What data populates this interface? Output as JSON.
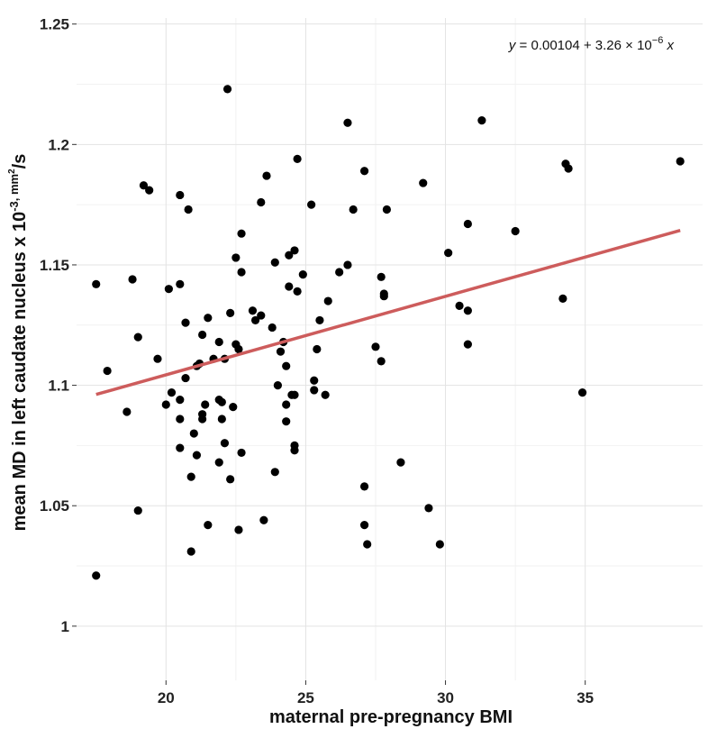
{
  "chart_data": {
    "type": "scatter",
    "xlabel": "maternal pre-pregnancy BMI",
    "ylabel_main": "mean MD in left caudate nucleus x 10",
    "ylabel_exp": "-3, mm",
    "ylabel_exp2": "2",
    "ylabel_tail": "/s",
    "equation": {
      "lhs": "y",
      "rhs": " = 0.00104 + 3.26 × 10",
      "exp": "−6",
      "var": " x"
    },
    "xlim": [
      16.8,
      39.2
    ],
    "ylim": [
      0.9775,
      1.2525
    ],
    "x_ticks": [
      20,
      25,
      30,
      35
    ],
    "x_tick_labels": [
      "20",
      "25",
      "30",
      "35"
    ],
    "y_ticks": [
      1.0,
      1.05,
      1.1,
      1.15,
      1.2,
      1.25
    ],
    "y_tick_labels": [
      "1",
      "1.05",
      "1.1",
      "1.15",
      "1.2",
      "1.25"
    ],
    "grid": true,
    "point_color": "#000000",
    "fit_line": {
      "color": "#cd5c5c",
      "x": [
        17.5,
        38.4
      ],
      "y": [
        1.0962,
        1.1643
      ]
    },
    "points": [
      {
        "x": 17.5,
        "y": 1.142
      },
      {
        "x": 17.5,
        "y": 1.021
      },
      {
        "x": 17.9,
        "y": 1.106
      },
      {
        "x": 18.6,
        "y": 1.089
      },
      {
        "x": 18.8,
        "y": 1.144
      },
      {
        "x": 19.0,
        "y": 1.12
      },
      {
        "x": 19.0,
        "y": 1.048
      },
      {
        "x": 19.2,
        "y": 1.183
      },
      {
        "x": 19.4,
        "y": 1.181
      },
      {
        "x": 19.7,
        "y": 1.111
      },
      {
        "x": 20.0,
        "y": 1.092
      },
      {
        "x": 20.1,
        "y": 1.14
      },
      {
        "x": 20.2,
        "y": 1.097
      },
      {
        "x": 20.5,
        "y": 1.179
      },
      {
        "x": 20.5,
        "y": 1.142
      },
      {
        "x": 20.5,
        "y": 1.094
      },
      {
        "x": 20.5,
        "y": 1.086
      },
      {
        "x": 20.5,
        "y": 1.074
      },
      {
        "x": 20.7,
        "y": 1.126
      },
      {
        "x": 20.7,
        "y": 1.103
      },
      {
        "x": 20.8,
        "y": 1.173
      },
      {
        "x": 20.9,
        "y": 1.062
      },
      {
        "x": 20.9,
        "y": 1.031
      },
      {
        "x": 21.0,
        "y": 1.08
      },
      {
        "x": 21.1,
        "y": 1.108
      },
      {
        "x": 21.1,
        "y": 1.071
      },
      {
        "x": 21.2,
        "y": 1.109
      },
      {
        "x": 21.3,
        "y": 1.121
      },
      {
        "x": 21.3,
        "y": 1.088
      },
      {
        "x": 21.3,
        "y": 1.086
      },
      {
        "x": 21.4,
        "y": 1.092
      },
      {
        "x": 21.5,
        "y": 1.128
      },
      {
        "x": 21.5,
        "y": 1.042
      },
      {
        "x": 21.7,
        "y": 1.111
      },
      {
        "x": 21.9,
        "y": 1.118
      },
      {
        "x": 21.9,
        "y": 1.094
      },
      {
        "x": 21.9,
        "y": 1.068
      },
      {
        "x": 22.0,
        "y": 1.093
      },
      {
        "x": 22.0,
        "y": 1.086
      },
      {
        "x": 22.1,
        "y": 1.111
      },
      {
        "x": 22.1,
        "y": 1.076
      },
      {
        "x": 22.2,
        "y": 1.223
      },
      {
        "x": 22.3,
        "y": 1.13
      },
      {
        "x": 22.3,
        "y": 1.061
      },
      {
        "x": 22.4,
        "y": 1.091
      },
      {
        "x": 22.5,
        "y": 1.153
      },
      {
        "x": 22.5,
        "y": 1.117
      },
      {
        "x": 22.6,
        "y": 1.115
      },
      {
        "x": 22.6,
        "y": 1.04
      },
      {
        "x": 22.7,
        "y": 1.163
      },
      {
        "x": 22.7,
        "y": 1.147
      },
      {
        "x": 22.7,
        "y": 1.072
      },
      {
        "x": 23.1,
        "y": 1.131
      },
      {
        "x": 23.2,
        "y": 1.127
      },
      {
        "x": 23.4,
        "y": 1.129
      },
      {
        "x": 23.4,
        "y": 1.176
      },
      {
        "x": 23.5,
        "y": 1.044
      },
      {
        "x": 23.6,
        "y": 1.187
      },
      {
        "x": 23.8,
        "y": 1.124
      },
      {
        "x": 23.9,
        "y": 1.151
      },
      {
        "x": 23.9,
        "y": 1.064
      },
      {
        "x": 24.0,
        "y": 1.1
      },
      {
        "x": 24.1,
        "y": 1.114
      },
      {
        "x": 24.2,
        "y": 1.118
      },
      {
        "x": 24.3,
        "y": 1.108
      },
      {
        "x": 24.3,
        "y": 1.092
      },
      {
        "x": 24.3,
        "y": 1.085
      },
      {
        "x": 24.4,
        "y": 1.154
      },
      {
        "x": 24.4,
        "y": 1.141
      },
      {
        "x": 24.5,
        "y": 1.096
      },
      {
        "x": 24.6,
        "y": 1.156
      },
      {
        "x": 24.6,
        "y": 1.096
      },
      {
        "x": 24.6,
        "y": 1.075
      },
      {
        "x": 24.6,
        "y": 1.073
      },
      {
        "x": 24.7,
        "y": 1.139
      },
      {
        "x": 24.7,
        "y": 1.194
      },
      {
        "x": 24.9,
        "y": 1.146
      },
      {
        "x": 25.2,
        "y": 1.175
      },
      {
        "x": 25.3,
        "y": 1.102
      },
      {
        "x": 25.3,
        "y": 1.098
      },
      {
        "x": 25.4,
        "y": 1.115
      },
      {
        "x": 25.5,
        "y": 1.127
      },
      {
        "x": 25.7,
        "y": 1.096
      },
      {
        "x": 25.8,
        "y": 1.135
      },
      {
        "x": 26.2,
        "y": 1.147
      },
      {
        "x": 26.5,
        "y": 1.209
      },
      {
        "x": 26.5,
        "y": 1.15
      },
      {
        "x": 26.7,
        "y": 1.173
      },
      {
        "x": 27.1,
        "y": 1.189
      },
      {
        "x": 27.1,
        "y": 1.058
      },
      {
        "x": 27.1,
        "y": 1.042
      },
      {
        "x": 27.2,
        "y": 1.034
      },
      {
        "x": 27.5,
        "y": 1.116
      },
      {
        "x": 27.7,
        "y": 1.145
      },
      {
        "x": 27.7,
        "y": 1.11
      },
      {
        "x": 27.8,
        "y": 1.138
      },
      {
        "x": 27.8,
        "y": 1.137
      },
      {
        "x": 27.9,
        "y": 1.173
      },
      {
        "x": 28.4,
        "y": 1.068
      },
      {
        "x": 29.2,
        "y": 1.184
      },
      {
        "x": 29.4,
        "y": 1.049
      },
      {
        "x": 29.8,
        "y": 1.034
      },
      {
        "x": 30.1,
        "y": 1.155
      },
      {
        "x": 30.5,
        "y": 1.133
      },
      {
        "x": 30.8,
        "y": 1.167
      },
      {
        "x": 30.8,
        "y": 1.131
      },
      {
        "x": 30.8,
        "y": 1.117
      },
      {
        "x": 31.3,
        "y": 1.21
      },
      {
        "x": 32.5,
        "y": 1.164
      },
      {
        "x": 34.2,
        "y": 1.136
      },
      {
        "x": 34.3,
        "y": 1.192
      },
      {
        "x": 34.4,
        "y": 1.19
      },
      {
        "x": 34.9,
        "y": 1.097
      },
      {
        "x": 38.4,
        "y": 1.193
      }
    ]
  }
}
